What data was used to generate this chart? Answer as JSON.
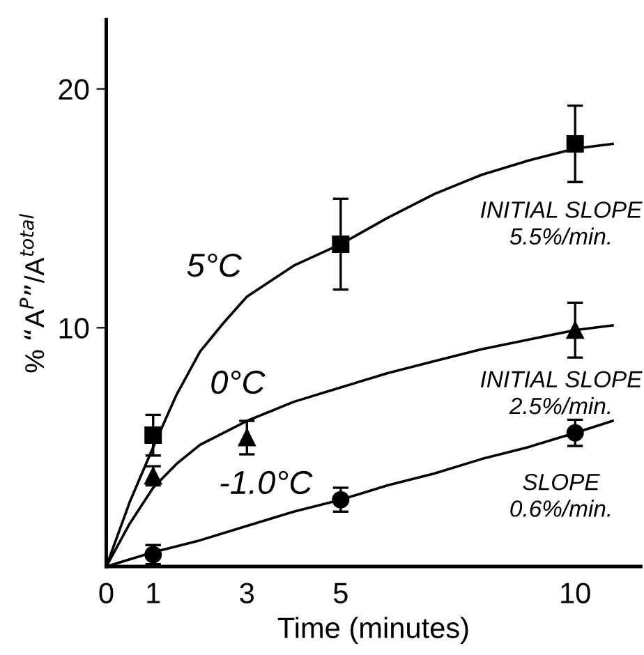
{
  "chart_data": {
    "type": "scatter",
    "xlabel": "Time (minutes)",
    "ylabel": "% “A$^{P}$”/A$^{total}$",
    "xlim": [
      0,
      11.4
    ],
    "ylim": [
      0,
      22.9
    ],
    "xticks": [
      0,
      1,
      3,
      5,
      10
    ],
    "yticks": [
      10,
      20
    ],
    "grid": false,
    "legend": false,
    "series": [
      {
        "name": "5°C",
        "color": "#000000",
        "marker": "square",
        "x": [
          1,
          5,
          10
        ],
        "values": [
          5.5,
          13.5,
          17.7
        ],
        "errors": [
          0.85,
          1.9,
          1.6
        ]
      },
      {
        "name": "0°C",
        "color": "#000000",
        "marker": "triangle",
        "x": [
          1,
          3,
          10
        ],
        "values": [
          3.8,
          5.4,
          9.9
        ],
        "errors": [
          0.4,
          0.7,
          1.15
        ]
      },
      {
        "name": "-1.0°C",
        "color": "#000000",
        "marker": "circle",
        "x": [
          1,
          5,
          10
        ],
        "values": [
          0.5,
          2.8,
          5.6
        ],
        "errors": [
          0.4,
          0.5,
          0.55
        ]
      },
      {
        "color": "#000000",
        "type": "line",
        "line_style": "solid",
        "x": [
          0,
          0.5,
          1,
          1.5,
          2,
          2.5,
          3,
          4,
          5,
          6,
          7,
          8,
          9,
          10,
          10.8
        ],
        "values": [
          0,
          2.7,
          5.0,
          7.2,
          9.0,
          10.2,
          11.3,
          12.6,
          13.5,
          14.6,
          15.6,
          16.4,
          17.0,
          17.5,
          17.7
        ]
      },
      {
        "color": "#000000",
        "type": "line",
        "line_style": "solid",
        "x": [
          0,
          0.5,
          1,
          1.5,
          2,
          3,
          4,
          5,
          6,
          7,
          8,
          9,
          10,
          10.8
        ],
        "values": [
          0,
          1.8,
          3.3,
          4.3,
          5.1,
          6.1,
          6.9,
          7.5,
          8.1,
          8.6,
          9.1,
          9.5,
          9.9,
          10.1
        ]
      },
      {
        "color": "#000000",
        "type": "line",
        "line_style": "solid",
        "x": [
          0,
          1,
          2,
          3,
          4,
          5,
          6,
          7,
          8,
          9,
          10,
          10.8
        ],
        "values": [
          0,
          0.6,
          1.1,
          1.7,
          2.3,
          2.8,
          3.4,
          3.9,
          4.5,
          5.0,
          5.6,
          6.1
        ]
      }
    ],
    "annotations": [
      "INITIAL SLOPE\n5.5%/min.",
      "INITIAL SLOPE\n2.5%/min.",
      "SLOPE\n0.6%/min."
    ]
  }
}
